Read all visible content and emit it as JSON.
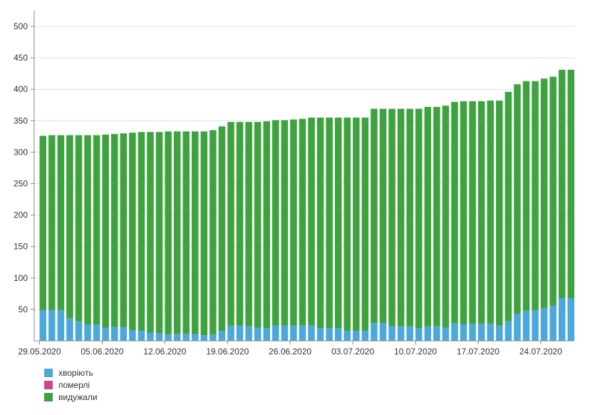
{
  "chart_data": {
    "type": "bar",
    "stacked": true,
    "x_tick_labels": [
      "29.05.2020",
      "05.06.2020",
      "12.06.2020",
      "19.06.2020",
      "26.06.2020",
      "03.07.2020",
      "10.07.2020",
      "17.07.2020",
      "24.07.2020"
    ],
    "ylim": [
      0,
      500
    ],
    "y_ticks": [
      50,
      100,
      150,
      200,
      250,
      300,
      350,
      400,
      450,
      500
    ],
    "grid": true,
    "legend_position": "bottom-left",
    "colors": {
      "хворіють": "#4aa8dc",
      "померлі": "#d63f8c",
      "видужали": "#3ea33e"
    },
    "series": [
      {
        "name": "хворіють",
        "values": [
          49,
          49,
          49,
          36,
          31,
          26,
          26,
          21,
          22,
          22,
          17,
          16,
          13,
          12,
          10,
          11,
          11,
          11,
          9,
          10,
          16,
          24,
          24,
          23,
          21,
          20,
          24,
          24,
          24,
          25,
          25,
          20,
          20,
          20,
          16,
          16,
          16,
          28,
          28,
          23,
          23,
          23,
          20,
          23,
          23,
          21,
          28,
          26,
          27,
          27,
          27,
          24,
          31,
          43,
          48,
          49,
          52,
          56,
          68,
          68
        ]
      },
      {
        "name": "померлі",
        "values": [
          0,
          0,
          0,
          0,
          0,
          0,
          0,
          0,
          0,
          0,
          0,
          0,
          0,
          0,
          0,
          0,
          0,
          0,
          0,
          0,
          0,
          0,
          0,
          0,
          0,
          0,
          0,
          0,
          0,
          0,
          0,
          0,
          0,
          0,
          0,
          0,
          0,
          0,
          0,
          0,
          0,
          0,
          0,
          0,
          0,
          0,
          0,
          0,
          0,
          0,
          0,
          0,
          0,
          0,
          0,
          0,
          0,
          0,
          0,
          0
        ]
      },
      {
        "name": "видужали",
        "values": [
          277,
          278,
          278,
          291,
          296,
          301,
          301,
          307,
          307,
          308,
          314,
          316,
          319,
          320,
          323,
          322,
          322,
          322,
          324,
          325,
          325,
          324,
          324,
          325,
          327,
          329,
          327,
          327,
          328,
          328,
          330,
          335,
          335,
          335,
          339,
          339,
          339,
          341,
          341,
          346,
          346,
          346,
          349,
          349,
          349,
          353,
          352,
          355,
          354,
          354,
          355,
          358,
          365,
          365,
          365,
          364,
          365,
          364,
          363,
          363
        ]
      }
    ]
  }
}
